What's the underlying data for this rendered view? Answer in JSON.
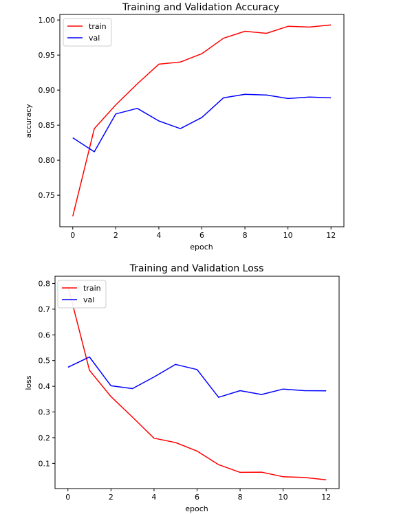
{
  "chart_data": [
    {
      "type": "line",
      "title": "Training and Validation Accuracy",
      "xlabel": "epoch",
      "ylabel": "accuracy",
      "xlim": [
        -0.6,
        12.6
      ],
      "ylim": [
        0.705,
        1.008
      ],
      "xticks": [
        0,
        2,
        4,
        6,
        8,
        10,
        12
      ],
      "yticks": [
        0.75,
        0.8,
        0.85,
        0.9,
        0.95,
        1.0
      ],
      "ytick_labels": [
        "0.75",
        "0.80",
        "0.85",
        "0.90",
        "0.95",
        "1.00"
      ],
      "legend_position": "upper-left",
      "x": [
        0,
        1,
        2,
        3,
        4,
        5,
        6,
        7,
        8,
        9,
        10,
        11,
        12
      ],
      "series": [
        {
          "name": "train",
          "color": "#ff0000",
          "values": [
            0.72,
            0.845,
            0.879,
            0.909,
            0.937,
            0.94,
            0.952,
            0.974,
            0.984,
            0.981,
            0.991,
            0.99,
            0.993
          ]
        },
        {
          "name": "val",
          "color": "#0000ff",
          "values": [
            0.832,
            0.812,
            0.866,
            0.874,
            0.856,
            0.845,
            0.861,
            0.889,
            0.894,
            0.893,
            0.888,
            0.89,
            0.889
          ]
        }
      ]
    },
    {
      "type": "line",
      "title": "Training and Validation Loss",
      "xlabel": "epoch",
      "ylabel": "loss",
      "xlim": [
        -0.6,
        12.6
      ],
      "ylim": [
        0.002,
        0.828
      ],
      "xticks": [
        0,
        2,
        4,
        6,
        8,
        10,
        12
      ],
      "yticks": [
        0.1,
        0.2,
        0.3,
        0.4,
        0.5,
        0.6,
        0.7,
        0.8
      ],
      "ytick_labels": [
        "0.1",
        "0.2",
        "0.3",
        "0.4",
        "0.5",
        "0.6",
        "0.7",
        "0.8"
      ],
      "legend_position": "upper-left",
      "x": [
        0,
        1,
        2,
        3,
        4,
        5,
        6,
        7,
        8,
        9,
        10,
        11,
        12
      ],
      "series": [
        {
          "name": "train",
          "color": "#ff0000",
          "values": [
            0.79,
            0.462,
            0.36,
            0.28,
            0.198,
            0.181,
            0.148,
            0.095,
            0.065,
            0.066,
            0.048,
            0.045,
            0.036
          ]
        },
        {
          "name": "val",
          "color": "#0000ff",
          "values": [
            0.474,
            0.514,
            0.402,
            0.391,
            0.436,
            0.485,
            0.465,
            0.357,
            0.383,
            0.368,
            0.389,
            0.383,
            0.382
          ]
        }
      ]
    }
  ]
}
